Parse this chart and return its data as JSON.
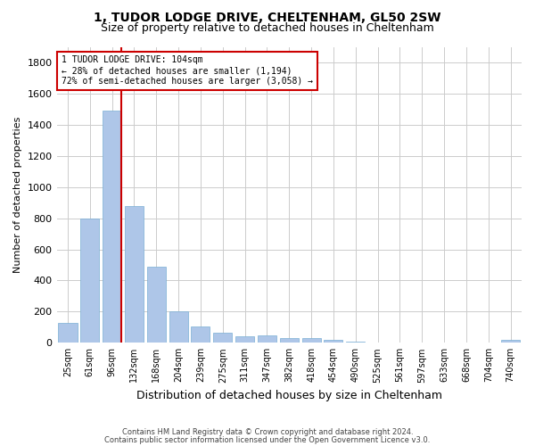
{
  "title": "1, TUDOR LODGE DRIVE, CHELTENHAM, GL50 2SW",
  "subtitle": "Size of property relative to detached houses in Cheltenham",
  "xlabel": "Distribution of detached houses by size in Cheltenham",
  "ylabel": "Number of detached properties",
  "bar_color": "#aec6e8",
  "bar_edge_color": "#7aafd4",
  "categories": [
    "25sqm",
    "61sqm",
    "96sqm",
    "132sqm",
    "168sqm",
    "204sqm",
    "239sqm",
    "275sqm",
    "311sqm",
    "347sqm",
    "382sqm",
    "418sqm",
    "454sqm",
    "490sqm",
    "525sqm",
    "561sqm",
    "597sqm",
    "633sqm",
    "668sqm",
    "704sqm",
    "740sqm"
  ],
  "values": [
    125,
    800,
    1490,
    880,
    490,
    205,
    105,
    65,
    42,
    50,
    33,
    28,
    20,
    5,
    0,
    0,
    0,
    0,
    0,
    0,
    18
  ],
  "ylim": [
    0,
    1900
  ],
  "yticks": [
    0,
    200,
    400,
    600,
    800,
    1000,
    1200,
    1400,
    1600,
    1800
  ],
  "property_bin_index": 2,
  "annotation_title": "1 TUDOR LODGE DRIVE: 104sqm",
  "annotation_line1": "← 28% of detached houses are smaller (1,194)",
  "annotation_line2": "72% of semi-detached houses are larger (3,058) →",
  "vline_color": "#cc0000",
  "annotation_box_color": "#cc0000",
  "footer_line1": "Contains HM Land Registry data © Crown copyright and database right 2024.",
  "footer_line2": "Contains public sector information licensed under the Open Government Licence v3.0.",
  "background_color": "#ffffff",
  "grid_color": "#cccccc"
}
